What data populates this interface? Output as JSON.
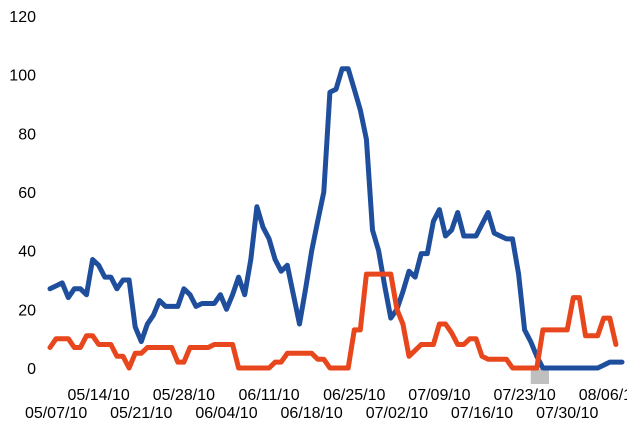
{
  "chart_data": {
    "type": "line",
    "title": "",
    "xlabel": "",
    "ylabel": "",
    "ylim": [
      0,
      120
    ],
    "xlim": [
      "2010-05-06",
      "2010-08-08"
    ],
    "yticks": [
      0,
      20,
      40,
      60,
      80,
      100,
      120
    ],
    "ytick_labels": [
      "0",
      "20",
      "40",
      "60",
      "80",
      "100",
      "120"
    ],
    "xtick_labels": [
      {
        "text": "05/07/10",
        "date": "2010-05-07",
        "row": 2
      },
      {
        "text": "05/14/10",
        "date": "2010-05-14",
        "row": 1
      },
      {
        "text": "05/21/10",
        "date": "2010-05-21",
        "row": 2
      },
      {
        "text": "05/28/10",
        "date": "2010-05-28",
        "row": 1
      },
      {
        "text": "06/04/10",
        "date": "2010-06-04",
        "row": 2
      },
      {
        "text": "06/11/10",
        "date": "2010-06-11",
        "row": 1
      },
      {
        "text": "06/18/10",
        "date": "2010-06-18",
        "row": 2
      },
      {
        "text": "06/25/10",
        "date": "2010-06-25",
        "row": 1
      },
      {
        "text": "07/02/10",
        "date": "2010-07-02",
        "row": 2
      },
      {
        "text": "07/09/10",
        "date": "2010-07-09",
        "row": 1
      },
      {
        "text": "07/16/10",
        "date": "2010-07-16",
        "row": 2
      },
      {
        "text": "07/23/10",
        "date": "2010-07-23",
        "row": 1
      },
      {
        "text": "07/30/10",
        "date": "2010-07-30",
        "row": 2
      },
      {
        "text": "08/06/10",
        "date": "2010-08-06",
        "row": 1
      }
    ],
    "grid": false,
    "legend": "none",
    "highlight_band": {
      "from": "2010-07-24",
      "to": "2010-07-27",
      "color": "#bfbfbf"
    },
    "series": [
      {
        "color": "#1f4e9c",
        "points": [
          [
            "2010-05-06",
            27
          ],
          [
            "2010-05-07",
            28
          ],
          [
            "2010-05-08",
            29
          ],
          [
            "2010-05-09",
            24
          ],
          [
            "2010-05-10",
            27
          ],
          [
            "2010-05-11",
            27
          ],
          [
            "2010-05-12",
            25
          ],
          [
            "2010-05-13",
            37
          ],
          [
            "2010-05-14",
            35
          ],
          [
            "2010-05-15",
            31
          ],
          [
            "2010-05-16",
            31
          ],
          [
            "2010-05-17",
            27
          ],
          [
            "2010-05-18",
            30
          ],
          [
            "2010-05-19",
            30
          ],
          [
            "2010-05-20",
            14
          ],
          [
            "2010-05-21",
            9
          ],
          [
            "2010-05-22",
            15
          ],
          [
            "2010-05-23",
            18
          ],
          [
            "2010-05-24",
            23
          ],
          [
            "2010-05-25",
            21
          ],
          [
            "2010-05-26",
            21
          ],
          [
            "2010-05-27",
            21
          ],
          [
            "2010-05-28",
            27
          ],
          [
            "2010-05-29",
            25
          ],
          [
            "2010-05-30",
            21
          ],
          [
            "2010-05-31",
            22
          ],
          [
            "2010-06-01",
            22
          ],
          [
            "2010-06-02",
            22
          ],
          [
            "2010-06-03",
            25
          ],
          [
            "2010-06-04",
            20
          ],
          [
            "2010-06-05",
            25
          ],
          [
            "2010-06-06",
            31
          ],
          [
            "2010-06-07",
            25
          ],
          [
            "2010-06-08",
            37
          ],
          [
            "2010-06-09",
            55
          ],
          [
            "2010-06-10",
            48
          ],
          [
            "2010-06-11",
            44
          ],
          [
            "2010-06-12",
            37
          ],
          [
            "2010-06-13",
            33
          ],
          [
            "2010-06-14",
            35
          ],
          [
            "2010-06-15",
            25
          ],
          [
            "2010-06-16",
            15
          ],
          [
            "2010-06-17",
            27
          ],
          [
            "2010-06-18",
            40
          ],
          [
            "2010-06-19",
            50
          ],
          [
            "2010-06-20",
            60
          ],
          [
            "2010-06-21",
            94
          ],
          [
            "2010-06-22",
            95
          ],
          [
            "2010-06-23",
            102
          ],
          [
            "2010-06-24",
            102
          ],
          [
            "2010-06-25",
            95
          ],
          [
            "2010-06-26",
            88
          ],
          [
            "2010-06-27",
            78
          ],
          [
            "2010-06-28",
            47
          ],
          [
            "2010-06-29",
            40
          ],
          [
            "2010-06-30",
            28
          ],
          [
            "2010-07-01",
            17
          ],
          [
            "2010-07-02",
            20
          ],
          [
            "2010-07-03",
            26
          ],
          [
            "2010-07-04",
            33
          ],
          [
            "2010-07-05",
            31
          ],
          [
            "2010-07-06",
            39
          ],
          [
            "2010-07-07",
            39
          ],
          [
            "2010-07-08",
            50
          ],
          [
            "2010-07-09",
            54
          ],
          [
            "2010-07-10",
            45
          ],
          [
            "2010-07-11",
            47
          ],
          [
            "2010-07-12",
            53
          ],
          [
            "2010-07-13",
            45
          ],
          [
            "2010-07-14",
            45
          ],
          [
            "2010-07-15",
            45
          ],
          [
            "2010-07-16",
            49
          ],
          [
            "2010-07-17",
            53
          ],
          [
            "2010-07-18",
            46
          ],
          [
            "2010-07-19",
            45
          ],
          [
            "2010-07-20",
            44
          ],
          [
            "2010-07-21",
            44
          ],
          [
            "2010-07-22",
            32
          ],
          [
            "2010-07-23",
            13
          ],
          [
            "2010-07-24",
            9
          ],
          [
            "2010-07-25",
            4
          ],
          [
            "2010-07-26",
            0
          ],
          [
            "2010-07-27",
            0
          ],
          [
            "2010-07-28",
            0
          ],
          [
            "2010-07-29",
            0
          ],
          [
            "2010-07-30",
            0
          ],
          [
            "2010-07-31",
            0
          ],
          [
            "2010-08-01",
            0
          ],
          [
            "2010-08-02",
            0
          ],
          [
            "2010-08-03",
            0
          ],
          [
            "2010-08-04",
            0
          ],
          [
            "2010-08-05",
            1
          ],
          [
            "2010-08-06",
            2
          ],
          [
            "2010-08-07",
            2
          ],
          [
            "2010-08-08",
            2
          ]
        ]
      },
      {
        "color": "#e8461c",
        "points": [
          [
            "2010-05-06",
            7
          ],
          [
            "2010-05-07",
            10
          ],
          [
            "2010-05-08",
            10
          ],
          [
            "2010-05-09",
            10
          ],
          [
            "2010-05-10",
            7
          ],
          [
            "2010-05-11",
            7
          ],
          [
            "2010-05-12",
            11
          ],
          [
            "2010-05-13",
            11
          ],
          [
            "2010-05-14",
            8
          ],
          [
            "2010-05-15",
            8
          ],
          [
            "2010-05-16",
            8
          ],
          [
            "2010-05-17",
            4
          ],
          [
            "2010-05-18",
            4
          ],
          [
            "2010-05-19",
            0
          ],
          [
            "2010-05-20",
            5
          ],
          [
            "2010-05-21",
            5
          ],
          [
            "2010-05-22",
            7
          ],
          [
            "2010-05-23",
            7
          ],
          [
            "2010-05-24",
            7
          ],
          [
            "2010-05-25",
            7
          ],
          [
            "2010-05-26",
            7
          ],
          [
            "2010-05-27",
            2
          ],
          [
            "2010-05-28",
            2
          ],
          [
            "2010-05-29",
            7
          ],
          [
            "2010-05-30",
            7
          ],
          [
            "2010-05-31",
            7
          ],
          [
            "2010-06-01",
            7
          ],
          [
            "2010-06-02",
            8
          ],
          [
            "2010-06-03",
            8
          ],
          [
            "2010-06-04",
            8
          ],
          [
            "2010-06-05",
            8
          ],
          [
            "2010-06-06",
            0
          ],
          [
            "2010-06-07",
            0
          ],
          [
            "2010-06-08",
            0
          ],
          [
            "2010-06-09",
            0
          ],
          [
            "2010-06-10",
            0
          ],
          [
            "2010-06-11",
            0
          ],
          [
            "2010-06-12",
            2
          ],
          [
            "2010-06-13",
            2
          ],
          [
            "2010-06-14",
            5
          ],
          [
            "2010-06-15",
            5
          ],
          [
            "2010-06-16",
            5
          ],
          [
            "2010-06-17",
            5
          ],
          [
            "2010-06-18",
            5
          ],
          [
            "2010-06-19",
            3
          ],
          [
            "2010-06-20",
            3
          ],
          [
            "2010-06-21",
            0
          ],
          [
            "2010-06-22",
            0
          ],
          [
            "2010-06-23",
            0
          ],
          [
            "2010-06-24",
            0
          ],
          [
            "2010-06-25",
            13
          ],
          [
            "2010-06-26",
            13
          ],
          [
            "2010-06-27",
            32
          ],
          [
            "2010-06-28",
            32
          ],
          [
            "2010-06-29",
            32
          ],
          [
            "2010-06-30",
            32
          ],
          [
            "2010-07-01",
            32
          ],
          [
            "2010-07-02",
            20
          ],
          [
            "2010-07-03",
            15
          ],
          [
            "2010-07-04",
            4
          ],
          [
            "2010-07-05",
            6
          ],
          [
            "2010-07-06",
            8
          ],
          [
            "2010-07-07",
            8
          ],
          [
            "2010-07-08",
            8
          ],
          [
            "2010-07-09",
            15
          ],
          [
            "2010-07-10",
            15
          ],
          [
            "2010-07-11",
            12
          ],
          [
            "2010-07-12",
            8
          ],
          [
            "2010-07-13",
            8
          ],
          [
            "2010-07-14",
            10
          ],
          [
            "2010-07-15",
            10
          ],
          [
            "2010-07-16",
            4
          ],
          [
            "2010-07-17",
            3
          ],
          [
            "2010-07-18",
            3
          ],
          [
            "2010-07-19",
            3
          ],
          [
            "2010-07-20",
            3
          ],
          [
            "2010-07-21",
            0
          ],
          [
            "2010-07-22",
            0
          ],
          [
            "2010-07-23",
            0
          ],
          [
            "2010-07-24",
            0
          ],
          [
            "2010-07-25",
            0
          ],
          [
            "2010-07-26",
            13
          ],
          [
            "2010-07-27",
            13
          ],
          [
            "2010-07-28",
            13
          ],
          [
            "2010-07-29",
            13
          ],
          [
            "2010-07-30",
            13
          ],
          [
            "2010-07-31",
            24
          ],
          [
            "2010-08-01",
            24
          ],
          [
            "2010-08-02",
            11
          ],
          [
            "2010-08-03",
            11
          ],
          [
            "2010-08-04",
            11
          ],
          [
            "2010-08-05",
            17
          ],
          [
            "2010-08-06",
            17
          ],
          [
            "2010-08-07",
            8
          ]
        ]
      }
    ]
  }
}
